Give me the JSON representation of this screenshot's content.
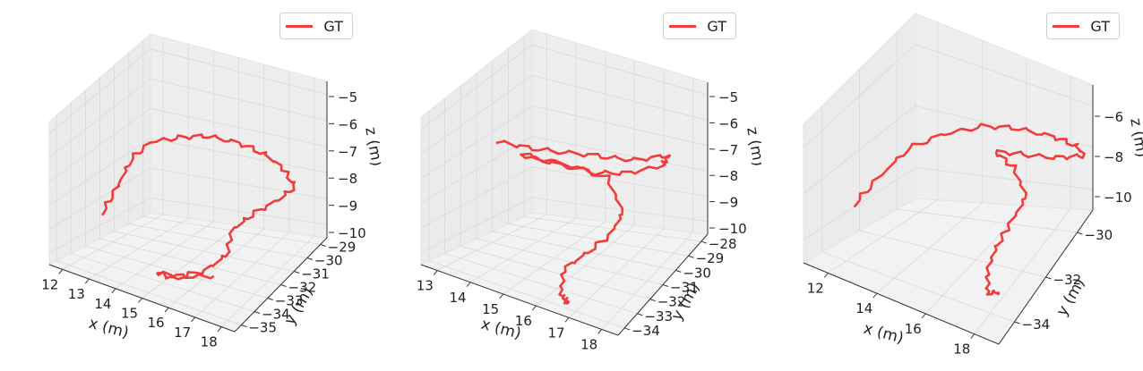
{
  "accent_color": "#f23c3c",
  "chart_data": [
    {
      "type": "line3d",
      "legend": [
        "GT"
      ],
      "legend_position": "top-right",
      "xlabel": "x (m)",
      "ylabel": "y (m)",
      "zlabel": "z (m)",
      "xticks": [
        "12",
        "13",
        "14",
        "15",
        "16",
        "17",
        "18"
      ],
      "yticks": [
        "-35",
        "-34",
        "-33",
        "-32",
        "-31",
        "-30",
        "-29"
      ],
      "zticks": [
        "-5",
        "-6",
        "-7",
        "-8",
        "-9",
        "-10"
      ],
      "xlim": [
        12,
        18
      ],
      "ylim": [
        -35,
        -29
      ],
      "zlim": [
        -10.5,
        -4.5
      ],
      "series": [
        {
          "name": "GT",
          "points": [
            [
              12.8,
              -33.3,
              -8.8
            ],
            [
              12.9,
              -32.6,
              -8.1
            ],
            [
              13.0,
              -31.9,
              -7.3
            ],
            [
              13.3,
              -31.2,
              -6.9
            ],
            [
              13.9,
              -30.6,
              -6.9
            ],
            [
              14.6,
              -30.1,
              -6.9
            ],
            [
              15.4,
              -29.8,
              -7.1
            ],
            [
              16.2,
              -29.6,
              -7.4
            ],
            [
              16.8,
              -29.6,
              -7.8
            ],
            [
              17.3,
              -29.7,
              -8.3
            ],
            [
              17.0,
              -30.3,
              -8.6
            ],
            [
              16.5,
              -31.0,
              -8.9
            ],
            [
              16.2,
              -31.6,
              -9.2
            ],
            [
              16.3,
              -32.2,
              -9.8
            ],
            [
              16.0,
              -32.9,
              -10.1
            ],
            [
              15.3,
              -33.6,
              -10.3
            ],
            [
              14.9,
              -33.9,
              -10.1
            ],
            [
              15.5,
              -33.5,
              -10.2
            ],
            [
              16.2,
              -32.8,
              -10.3
            ]
          ]
        }
      ]
    },
    {
      "type": "line3d",
      "legend": [
        "GT"
      ],
      "legend_position": "top-right",
      "xlabel": "x (m)",
      "ylabel": "y (m)",
      "zlabel": "z (m)",
      "xticks": [
        "13",
        "14",
        "15",
        "16",
        "17",
        "18"
      ],
      "yticks": [
        "-34",
        "-33",
        "-32",
        "-31",
        "-30",
        "-29",
        "-28"
      ],
      "zticks": [
        "-5",
        "-6",
        "-7",
        "-8",
        "-9",
        "-10"
      ],
      "xlim": [
        12.5,
        18.5
      ],
      "ylim": [
        -34,
        -28
      ],
      "zlim": [
        -10.5,
        -4.5
      ],
      "series": [
        {
          "name": "GT",
          "points": [
            [
              13.3,
              -31.3,
              -6.6
            ],
            [
              14.0,
              -30.8,
              -6.9
            ],
            [
              14.9,
              -30.2,
              -7.1
            ],
            [
              15.8,
              -29.6,
              -7.3
            ],
            [
              16.7,
              -29.2,
              -7.4
            ],
            [
              17.6,
              -28.8,
              -7.2
            ],
            [
              17.4,
              -28.8,
              -7.6
            ],
            [
              16.6,
              -29.4,
              -7.8
            ],
            [
              15.8,
              -30.0,
              -7.7
            ],
            [
              14.8,
              -30.7,
              -7.3
            ],
            [
              14.0,
              -31.1,
              -7.0
            ],
            [
              15.0,
              -30.4,
              -7.4
            ],
            [
              16.1,
              -29.8,
              -7.9
            ],
            [
              16.8,
              -30.2,
              -8.8
            ],
            [
              16.8,
              -31.0,
              -9.2
            ],
            [
              16.4,
              -31.8,
              -9.6
            ],
            [
              16.1,
              -32.5,
              -9.9
            ],
            [
              16.3,
              -33.1,
              -10.3
            ],
            [
              16.6,
              -33.3,
              -10.5
            ],
            [
              16.4,
              -33.0,
              -10.6
            ]
          ]
        }
      ]
    },
    {
      "type": "line3d",
      "legend": [
        "GT"
      ],
      "legend_position": "top-right",
      "xlabel": "x (m)",
      "ylabel": "y (m)",
      "zlabel": "z (m)",
      "xticks": [
        "12",
        "14",
        "16",
        "18"
      ],
      "yticks": [
        "-34",
        "-32",
        "-30"
      ],
      "zticks": [
        "-6",
        "-8",
        "-10"
      ],
      "xlim": [
        12,
        18
      ],
      "ylim": [
        -35,
        -29
      ],
      "zlim": [
        -10.5,
        -4.5
      ],
      "series": [
        {
          "name": "GT",
          "points": [
            [
              12.6,
              -33.3,
              -8.7
            ],
            [
              12.9,
              -32.5,
              -8.0
            ],
            [
              13.4,
              -31.7,
              -7.2
            ],
            [
              14.2,
              -31.0,
              -6.8
            ],
            [
              15.1,
              -30.4,
              -6.6
            ],
            [
              16.0,
              -29.9,
              -6.7
            ],
            [
              16.9,
              -29.5,
              -7.0
            ],
            [
              17.6,
              -29.3,
              -7.3
            ],
            [
              17.9,
              -29.4,
              -7.6
            ],
            [
              17.3,
              -29.9,
              -7.5
            ],
            [
              16.5,
              -30.5,
              -7.2
            ],
            [
              15.8,
              -31.0,
              -7.0
            ],
            [
              16.4,
              -30.9,
              -7.5
            ],
            [
              17.0,
              -31.3,
              -8.2
            ],
            [
              16.8,
              -31.9,
              -8.9
            ],
            [
              16.6,
              -32.4,
              -9.5
            ],
            [
              16.7,
              -33.1,
              -9.9
            ],
            [
              16.9,
              -33.5,
              -10.3
            ],
            [
              17.2,
              -33.4,
              -10.2
            ]
          ]
        }
      ]
    }
  ]
}
